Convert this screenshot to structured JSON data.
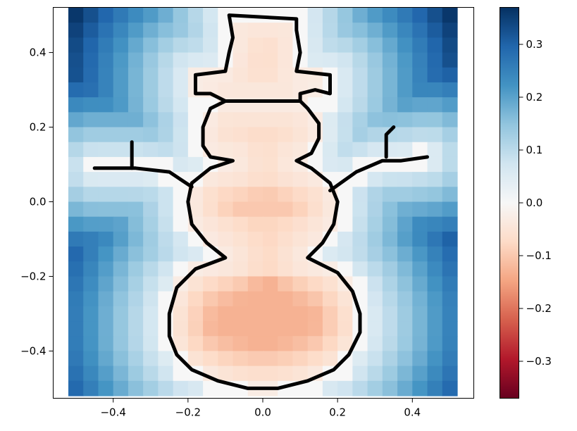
{
  "chart_data": {
    "type": "heatmap",
    "title": "",
    "xlabel": "",
    "ylabel": "",
    "xlim": [
      -0.52,
      0.52
    ],
    "ylim": [
      -0.52,
      0.52
    ],
    "grid": false,
    "x_ticks": [
      "−0.4",
      "−0.2",
      "0.0",
      "0.2",
      "0.4"
    ],
    "x_tick_values": [
      -0.4,
      -0.2,
      0.0,
      0.2,
      0.4
    ],
    "y_ticks": [
      "0.4",
      "0.2",
      "0.0",
      "−0.2",
      "−0.4"
    ],
    "y_tick_values": [
      0.4,
      0.2,
      0.0,
      -0.2,
      -0.4
    ],
    "grid_size": 26,
    "cell_extent": [
      -0.52,
      0.52
    ],
    "colormap": "RdBu",
    "colormap_stops": [
      "#67001f",
      "#b2182b",
      "#d6604d",
      "#f4a582",
      "#fddbc7",
      "#f7f7f7",
      "#d1e5f0",
      "#92c5de",
      "#4393c3",
      "#2166ac",
      "#053061"
    ],
    "colorbar": {
      "range": [
        -0.37,
        0.37
      ],
      "tick_values": [
        0.3,
        0.2,
        0.1,
        0.0,
        -0.1,
        -0.2,
        -0.3
      ],
      "tick_labels": [
        "0.3",
        "0.2",
        "0.1",
        "0.0",
        "−0.1",
        "−0.2",
        "−0.3"
      ]
    },
    "field_description_values": {
      "corner_value": 0.36,
      "center_body_value": -0.08,
      "bottom_body_value": -0.13
    },
    "overlay": {
      "name": "snowman-outline",
      "color": "#000000",
      "hat": [
        [
          -0.09,
          0.5
        ],
        [
          0.09,
          0.49
        ],
        [
          0.09,
          0.46
        ],
        [
          0.1,
          0.4
        ],
        [
          0.09,
          0.35
        ],
        [
          0.18,
          0.34
        ],
        [
          0.18,
          0.29
        ],
        [
          0.14,
          0.3
        ],
        [
          0.1,
          0.29
        ],
        [
          0.1,
          0.27
        ],
        [
          -0.1,
          0.27
        ],
        [
          -0.14,
          0.29
        ],
        [
          -0.18,
          0.29
        ],
        [
          -0.18,
          0.34
        ],
        [
          -0.1,
          0.35
        ],
        [
          -0.09,
          0.4
        ],
        [
          -0.08,
          0.44
        ],
        [
          -0.09,
          0.5
        ]
      ],
      "body": [
        [
          -0.1,
          0.27
        ],
        [
          -0.14,
          0.25
        ],
        [
          -0.16,
          0.2
        ],
        [
          -0.16,
          0.15
        ],
        [
          -0.14,
          0.12
        ],
        [
          -0.08,
          0.11
        ],
        [
          -0.14,
          0.09
        ],
        [
          -0.19,
          0.05
        ],
        [
          -0.2,
          0.0
        ],
        [
          -0.19,
          -0.06
        ],
        [
          -0.15,
          -0.11
        ],
        [
          -0.1,
          -0.15
        ],
        [
          -0.18,
          -0.18
        ],
        [
          -0.23,
          -0.23
        ],
        [
          -0.25,
          -0.3
        ],
        [
          -0.25,
          -0.36
        ],
        [
          -0.23,
          -0.41
        ],
        [
          -0.19,
          -0.45
        ],
        [
          -0.12,
          -0.48
        ],
        [
          -0.04,
          -0.5
        ],
        [
          0.04,
          -0.5
        ],
        [
          0.12,
          -0.48
        ],
        [
          0.19,
          -0.45
        ],
        [
          0.23,
          -0.41
        ],
        [
          0.26,
          -0.35
        ],
        [
          0.26,
          -0.3
        ],
        [
          0.24,
          -0.24
        ],
        [
          0.2,
          -0.19
        ],
        [
          0.12,
          -0.15
        ],
        [
          0.16,
          -0.11
        ],
        [
          0.19,
          -0.06
        ],
        [
          0.2,
          0.0
        ],
        [
          0.18,
          0.05
        ],
        [
          0.13,
          0.09
        ],
        [
          0.09,
          0.11
        ],
        [
          0.13,
          0.13
        ],
        [
          0.15,
          0.17
        ],
        [
          0.15,
          0.21
        ],
        [
          0.12,
          0.25
        ],
        [
          0.1,
          0.27
        ]
      ],
      "left_arm": [
        [
          -0.19,
          0.04
        ],
        [
          -0.25,
          0.08
        ],
        [
          -0.34,
          0.09
        ],
        [
          -0.45,
          0.09
        ]
      ],
      "left_twig": [
        [
          -0.35,
          0.09
        ],
        [
          -0.35,
          0.16
        ]
      ],
      "right_arm": [
        [
          0.18,
          0.03
        ],
        [
          0.25,
          0.08
        ],
        [
          0.32,
          0.11
        ],
        [
          0.37,
          0.11
        ],
        [
          0.44,
          0.12
        ]
      ],
      "right_twig": [
        [
          0.33,
          0.12
        ],
        [
          0.33,
          0.18
        ],
        [
          0.35,
          0.2
        ]
      ]
    }
  }
}
